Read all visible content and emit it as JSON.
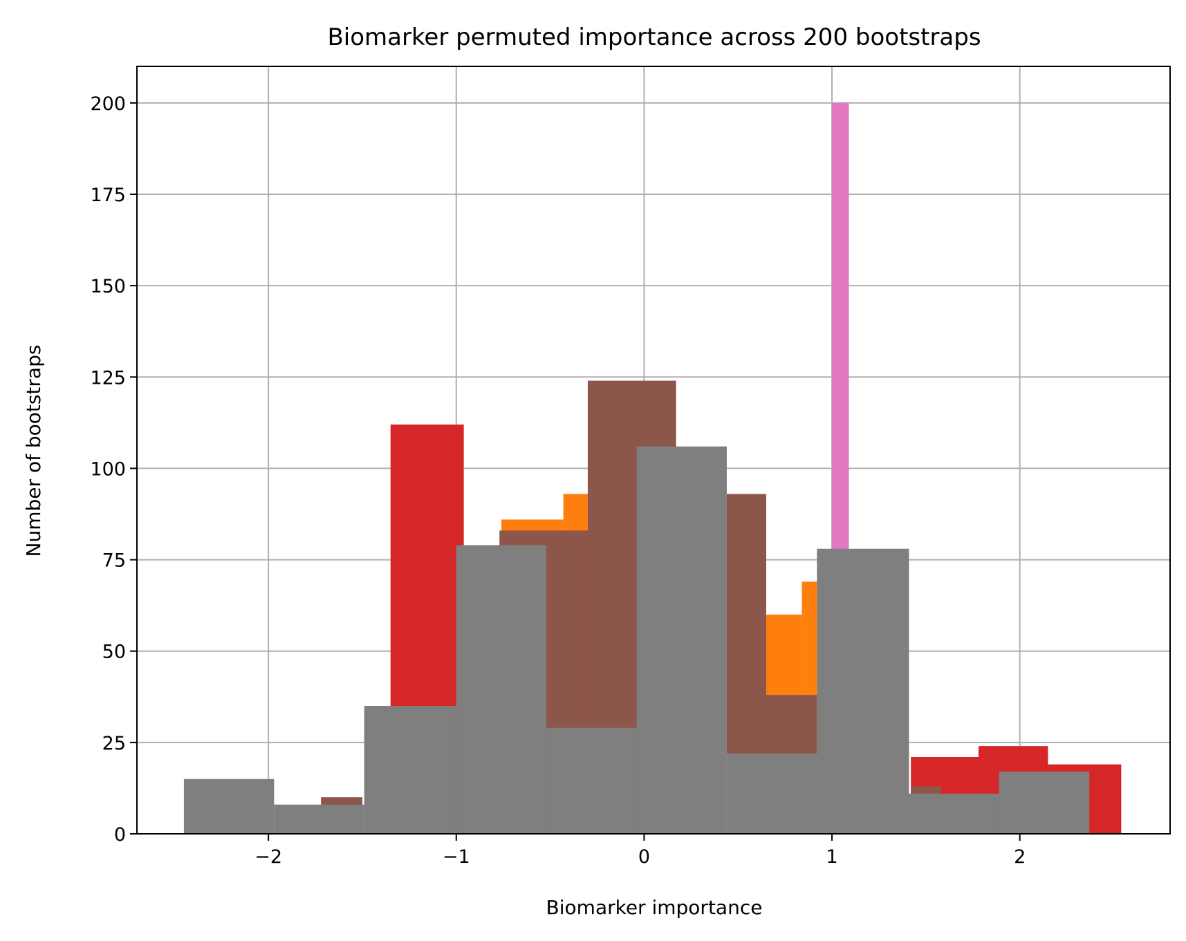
{
  "chart_data": {
    "type": "bar",
    "title": "Biomarker permuted importance across 200 bootstraps",
    "xlabel": "Biomarker importance",
    "ylabel": "Number of bootstraps",
    "xlim": [
      -2.7,
      2.8
    ],
    "ylim": [
      0,
      210
    ],
    "xticks": [
      -2,
      -1,
      0,
      1,
      2
    ],
    "xtick_labels": [
      "−2",
      "−1",
      "0",
      "1",
      "2"
    ],
    "yticks": [
      0,
      25,
      50,
      75,
      100,
      125,
      150,
      175,
      200
    ],
    "ytick_labels": [
      "0",
      "25",
      "50",
      "75",
      "100",
      "125",
      "150",
      "175",
      "200"
    ],
    "grid": true,
    "series": [
      {
        "color": "#d62728",
        "bins": [
          {
            "x0": -1.35,
            "x1": -0.96,
            "count": 112
          },
          {
            "x0": 1.42,
            "x1": 1.78,
            "count": 21
          },
          {
            "x0": 1.78,
            "x1": 2.15,
            "count": 24
          },
          {
            "x0": 2.15,
            "x1": 2.54,
            "count": 19
          }
        ]
      },
      {
        "color": "#ff7f0e",
        "bins": [
          {
            "x0": -0.76,
            "x1": -0.43,
            "count": 86
          },
          {
            "x0": -0.43,
            "x1": -0.3,
            "count": 93
          },
          {
            "x0": 0.65,
            "x1": 0.84,
            "count": 60
          },
          {
            "x0": 0.84,
            "x1": 0.92,
            "count": 69
          }
        ]
      },
      {
        "color": "#8c564b",
        "bins": [
          {
            "x0": -1.72,
            "x1": -1.5,
            "count": 10
          },
          {
            "x0": -0.77,
            "x1": -0.3,
            "count": 83
          },
          {
            "x0": -0.3,
            "x1": 0.17,
            "count": 124
          },
          {
            "x0": 0.44,
            "x1": 0.65,
            "count": 93
          },
          {
            "x0": 0.65,
            "x1": 0.92,
            "count": 38
          },
          {
            "x0": 1.42,
            "x1": 1.58,
            "count": 13
          }
        ]
      },
      {
        "color": "#e377c2",
        "bins": [
          {
            "x0": 1.0,
            "x1": 1.09,
            "count": 200
          }
        ]
      },
      {
        "color": "#7f7f7f",
        "bins": [
          {
            "x0": -2.45,
            "x1": -1.97,
            "count": 15
          },
          {
            "x0": -1.97,
            "x1": -1.49,
            "count": 8
          },
          {
            "x0": -1.49,
            "x1": -1.0,
            "count": 35
          },
          {
            "x0": -1.0,
            "x1": -0.52,
            "count": 79
          },
          {
            "x0": -0.52,
            "x1": -0.04,
            "count": 29
          },
          {
            "x0": -0.04,
            "x1": 0.44,
            "count": 106
          },
          {
            "x0": 0.44,
            "x1": 0.92,
            "count": 22
          },
          {
            "x0": 0.92,
            "x1": 1.41,
            "count": 78
          },
          {
            "x0": 1.41,
            "x1": 1.89,
            "count": 11
          },
          {
            "x0": 1.89,
            "x1": 2.37,
            "count": 17
          }
        ]
      }
    ]
  }
}
